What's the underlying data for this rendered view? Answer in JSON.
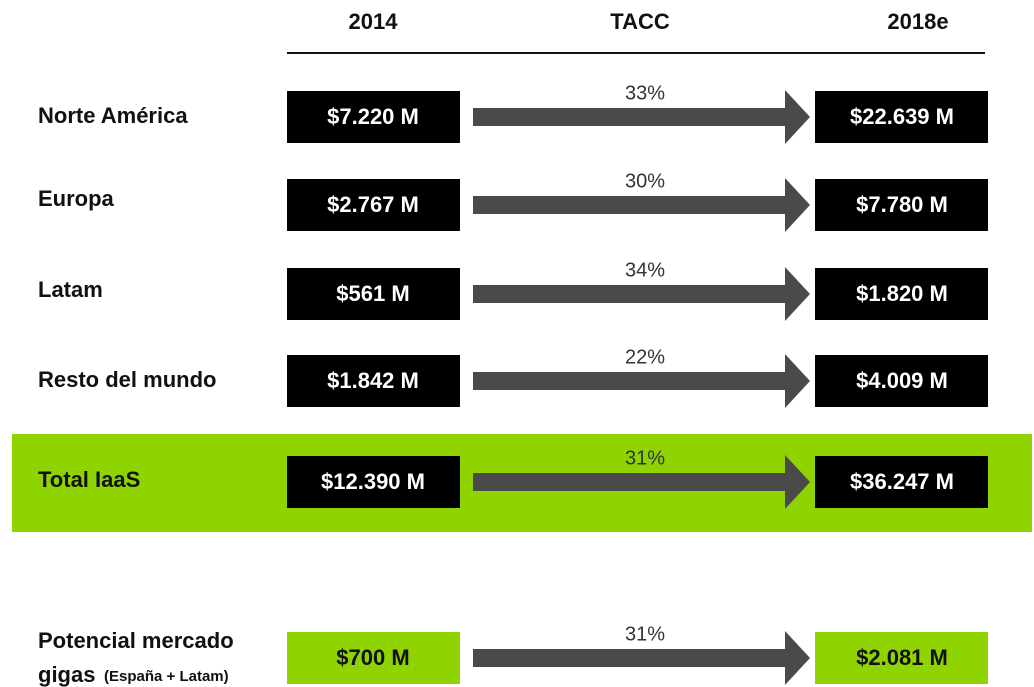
{
  "headers": [
    "2014",
    "TACC",
    "2018e"
  ],
  "rows": [
    {
      "label": "Norte América",
      "start": "$7.220 M",
      "rate": "33%",
      "end": "$22.639 M"
    },
    {
      "label": "Europa",
      "start": "$2.767 M",
      "rate": "30%",
      "end": "$7.780 M"
    },
    {
      "label": "Latam",
      "start": "$561 M",
      "rate": "34%",
      "end": "$1.820 M"
    },
    {
      "label": "Resto del mundo",
      "start": "$1.842 M",
      "rate": "22%",
      "end": "$4.009 M"
    },
    {
      "label": "Total IaaS",
      "start": "$12.390 M",
      "rate": "31%",
      "end": "$36.247 M"
    }
  ],
  "potential": {
    "label_lines": [
      "Potencial mercado",
      "gigas"
    ],
    "note": "(España + Latam)",
    "start": "$700 M",
    "rate": "31%",
    "end": "$2.081 M"
  }
}
